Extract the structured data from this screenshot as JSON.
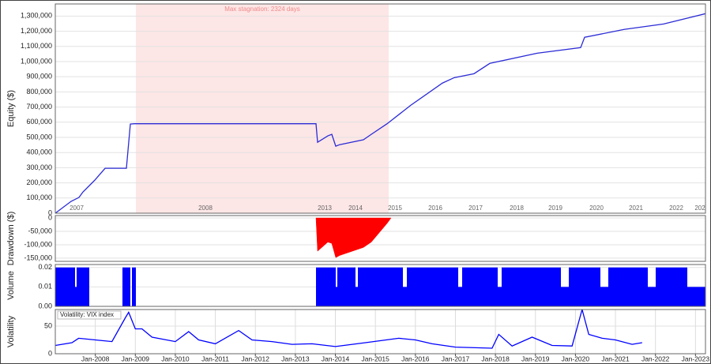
{
  "chart_data": [
    {
      "type": "line",
      "ylabel": "Equity ($)",
      "color": "#2b2bd6",
      "x": [
        0,
        20,
        30,
        35,
        50,
        63,
        90,
        95,
        100,
        330,
        332,
        345,
        350,
        355,
        360,
        390,
        400,
        420,
        450,
        490,
        505,
        530,
        550,
        610,
        665,
        670,
        720,
        770,
        823
      ],
      "values": [
        0,
        78000,
        104000,
        140000,
        218000,
        296000,
        296000,
        588000,
        590000,
        590000,
        468000,
        510000,
        520000,
        442000,
        452000,
        484000,
        520000,
        590000,
        712000,
        858000,
        894000,
        920000,
        988000,
        1055000,
        1092000,
        1160000,
        1212000,
        1248000,
        1316000
      ],
      "xlim": [
        0,
        823
      ],
      "ylim": [
        0,
        1380000
      ],
      "yticks": [
        0,
        {
          "value": 100000,
          "label": "100,000"
        },
        {
          "value": 200000,
          "label": "200,000"
        },
        {
          "value": 300000,
          "label": "300,000"
        },
        {
          "value": 400000,
          "label": "400,000"
        },
        {
          "value": 500000,
          "label": "500,000"
        },
        {
          "value": 600000,
          "label": "600,000"
        },
        {
          "value": 700000,
          "label": "700,000"
        },
        {
          "value": 800000,
          "label": "800,000"
        },
        {
          "value": 900000,
          "label": "900,000"
        },
        {
          "value": 1000000,
          "label": "1,000,000"
        },
        {
          "value": 1100000,
          "label": "1,100,000"
        },
        {
          "value": 1200000,
          "label": "1,200,000"
        },
        {
          "value": 1300000,
          "label": "1,300,000"
        }
      ],
      "xticks": [
        {
          "value": 27,
          "label": "2007"
        },
        {
          "value": 190,
          "label": "2008"
        },
        {
          "value": 341,
          "label": "2013"
        },
        {
          "value": 380,
          "label": "2014"
        },
        {
          "value": 430,
          "label": "2015"
        },
        {
          "value": 481,
          "label": "2016"
        },
        {
          "value": 532,
          "label": "2017"
        },
        {
          "value": 584,
          "label": "2018"
        },
        {
          "value": 633,
          "label": "2019"
        },
        {
          "value": 685,
          "label": "2020"
        },
        {
          "value": 735,
          "label": "2021"
        },
        {
          "value": 786,
          "label": "2022"
        },
        {
          "value": 816,
          "label": "202"
        }
      ],
      "stagnation": {
        "label": "Max stagnation: 2324 days",
        "start": 102,
        "end": 422
      },
      "grid": true
    },
    {
      "type": "area",
      "ylabel": "Drawdown ($)",
      "color": "#ff0000",
      "x": [
        330,
        332,
        345,
        350,
        355,
        360,
        390,
        400,
        420,
        425
      ],
      "values": [
        0,
        -124000,
        -90000,
        -95000,
        -148000,
        -140000,
        -110000,
        -90000,
        -20000,
        0
      ],
      "xlim": [
        0,
        823
      ],
      "ylim": [
        -162000,
        9000
      ],
      "yticks": [
        0,
        {
          "value": -50000,
          "label": "-50,000"
        },
        {
          "value": -100000,
          "label": "-100,000"
        },
        {
          "value": -150000,
          "label": "-150,000"
        }
      ],
      "grid": true
    },
    {
      "type": "step",
      "ylabel": "Volume",
      "color": "#0000ff",
      "x": [
        0,
        25,
        27,
        43,
        85,
        95,
        97,
        102,
        330,
        355,
        357,
        380,
        383,
        440,
        445,
        510,
        515,
        560,
        565,
        640,
        650,
        690,
        700,
        750,
        760,
        800
      ],
      "values": [
        0.02,
        0.01,
        0.02,
        0,
        0.02,
        0,
        0.02,
        0,
        0.02,
        0.01,
        0.02,
        0.01,
        0.02,
        0.01,
        0.02,
        0.01,
        0.02,
        0.01,
        0.02,
        0.01,
        0.02,
        0.01,
        0.02,
        0.01,
        0.02,
        0.01
      ],
      "xlim": [
        0,
        823
      ],
      "ylim": [
        0,
        0.0215
      ],
      "yticks": [
        {
          "value": 0,
          "label": "0.00"
        },
        0.01,
        0.02
      ],
      "grid": true
    },
    {
      "type": "line",
      "ylabel": "Volatility",
      "x": [
        "2007-01",
        "2007-06",
        "2007-08",
        "2008-01",
        "2008-06",
        "2008-10",
        "2008-11",
        "2009-01",
        "2009-03",
        "2009-06",
        "2010-01",
        "2010-05",
        "2010-08",
        "2011-01",
        "2011-08",
        "2011-12",
        "2012-06",
        "2012-12",
        "2013-06",
        "2014-01",
        "2014-10",
        "2015-08",
        "2016-01",
        "2016-06",
        "2017-01",
        "2017-12",
        "2018-02",
        "2018-06",
        "2018-12",
        "2019-06",
        "2019-12",
        "2020-03",
        "2020-05",
        "2020-09",
        "2021-01",
        "2021-06",
        "2021-09"
      ],
      "series": [
        {
          "name": "Volatility: VIX index",
          "color": "#0000ff",
          "values": [
            15,
            20,
            28,
            25,
            22,
            65,
            75,
            45,
            45,
            30,
            22,
            40,
            25,
            18,
            42,
            25,
            22,
            17,
            18,
            13,
            20,
            28,
            25,
            18,
            12,
            10,
            35,
            14,
            30,
            15,
            14,
            80,
            35,
            28,
            25,
            17,
            20
          ]
        }
      ],
      "xlim": [
        "2007-01",
        "2023-04"
      ],
      "ylim": [
        0,
        80
      ],
      "yticks": [
        0,
        50
      ],
      "xticks": [
        {
          "value": "2008-01",
          "label": "Jan-2008"
        },
        {
          "value": "2009-01",
          "label": "Jan-2009"
        },
        {
          "value": "2010-01",
          "label": "Jan-2010"
        },
        {
          "value": "2011-01",
          "label": "Jan-2011"
        },
        {
          "value": "2012-01",
          "label": "Jan-2012"
        },
        {
          "value": "2013-01",
          "label": "Jan-2013"
        },
        {
          "value": "2014-01",
          "label": "Jan-2014"
        },
        {
          "value": "2015-01",
          "label": "Jan-2015"
        },
        {
          "value": "2016-01",
          "label": "Jan-2016"
        },
        {
          "value": "2017-01",
          "label": "Jan-2017"
        },
        {
          "value": "2018-01",
          "label": "Jan-2018"
        },
        {
          "value": "2019-01",
          "label": "Jan-2019"
        },
        {
          "value": "2020-01",
          "label": "Jan-2020"
        },
        {
          "value": "2021-01",
          "label": "Jan-2021"
        },
        {
          "value": "2022-01",
          "label": "Jan-2022"
        },
        {
          "value": "2023-01",
          "label": "Jan-2023"
        }
      ],
      "grid": true
    }
  ]
}
